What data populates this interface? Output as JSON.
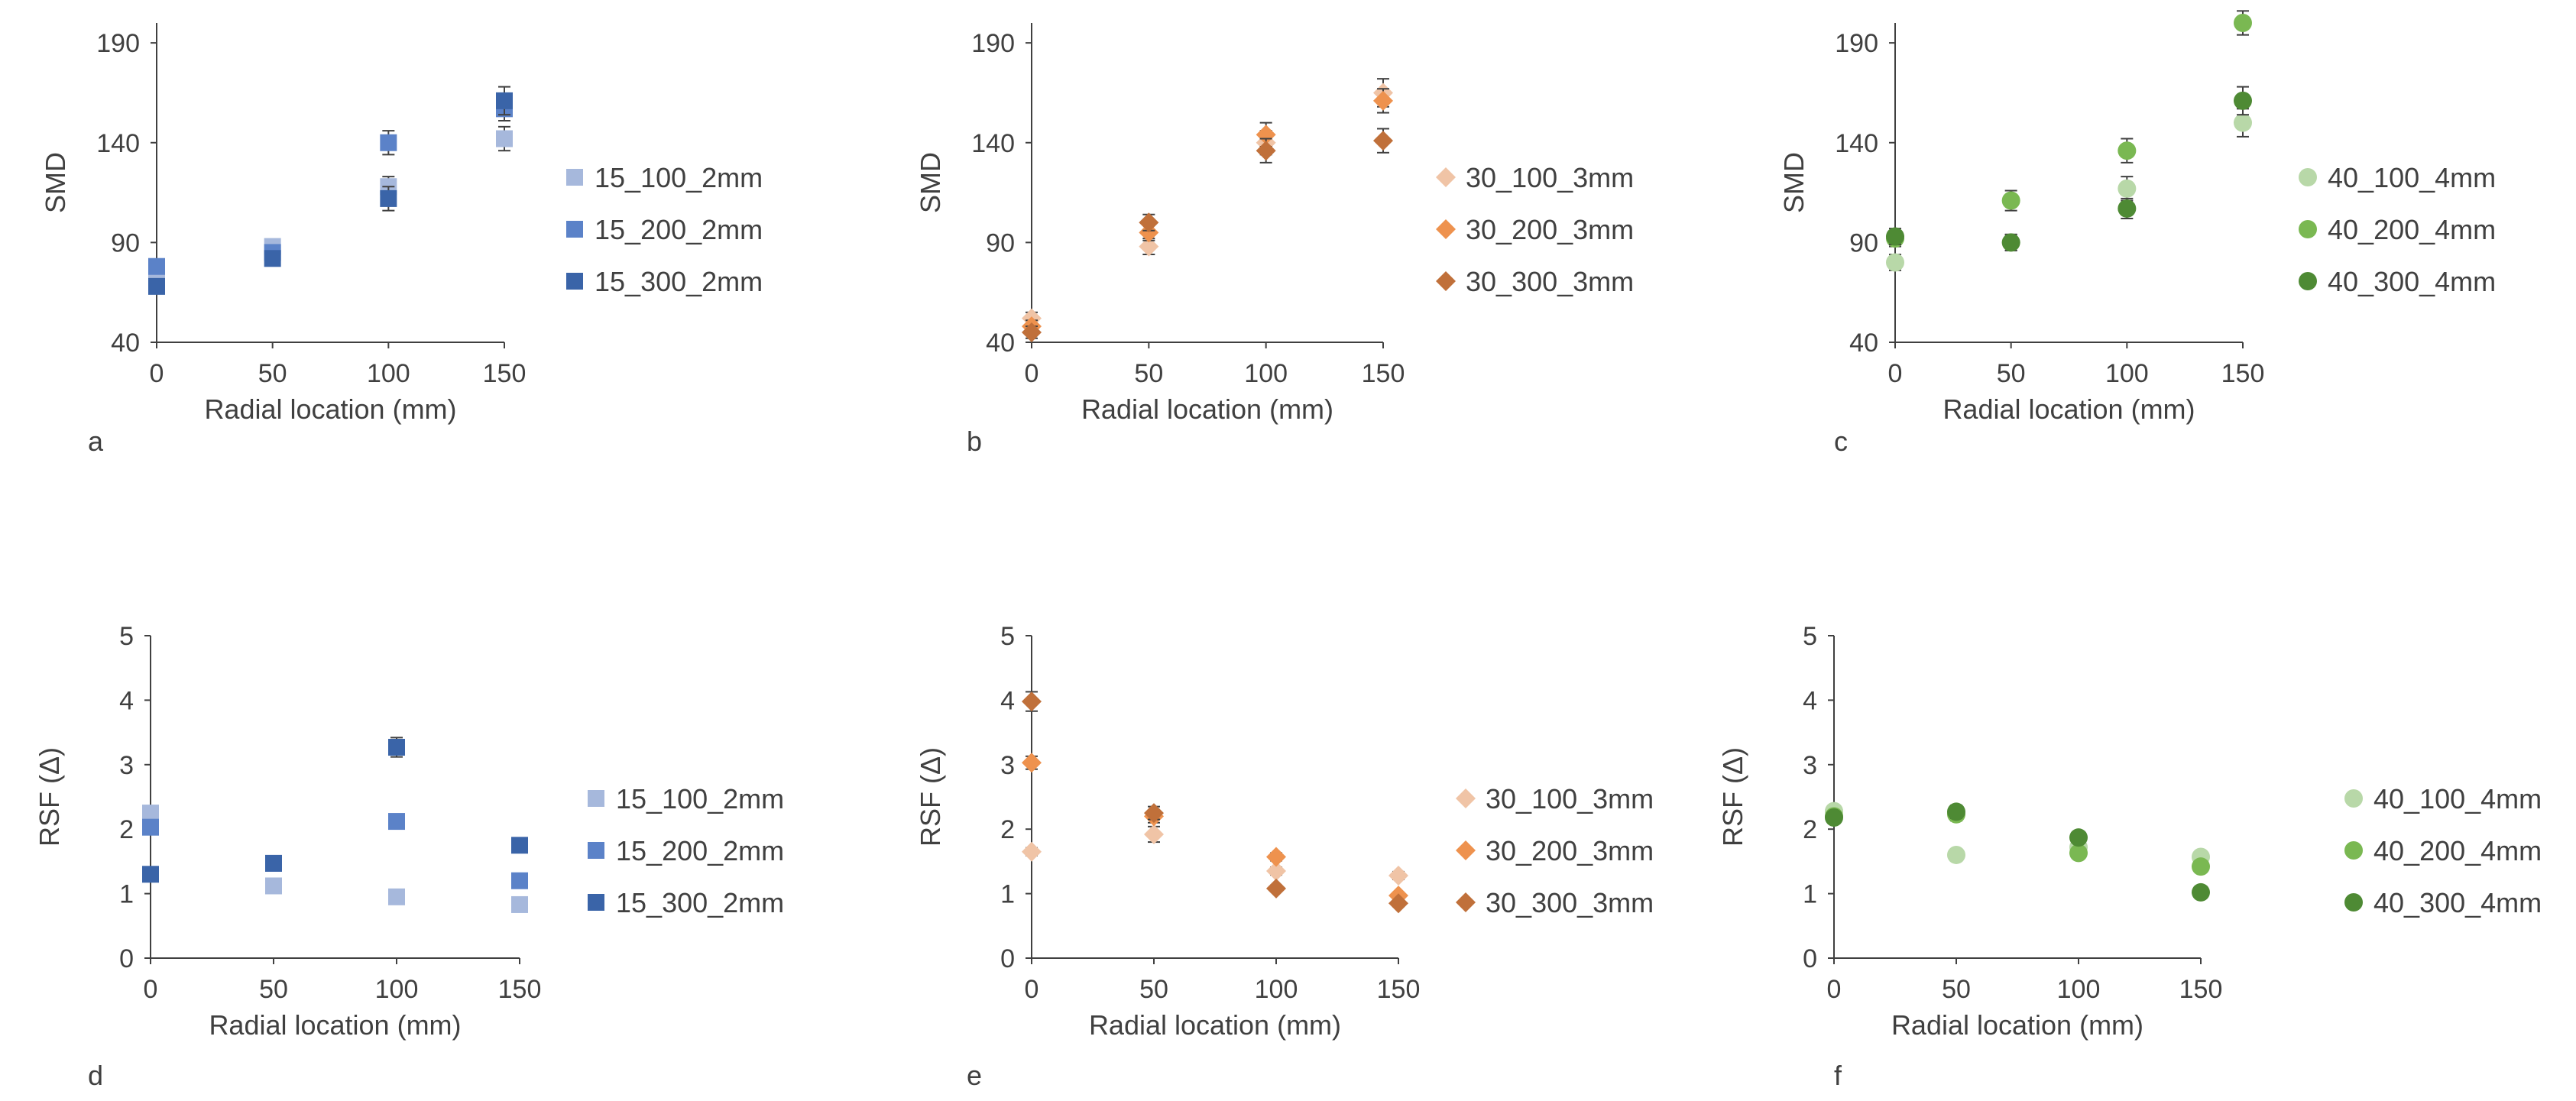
{
  "chart_data": [
    {
      "id": "a",
      "type": "scatter",
      "xlabel": "Radial location (mm)",
      "ylabel": "SMD",
      "xlim": [
        0,
        150
      ],
      "ylim": [
        40,
        200
      ],
      "yticks": [
        40,
        90,
        140,
        190
      ],
      "xticks": [
        0,
        50,
        100,
        150
      ],
      "marker": "square",
      "series": [
        {
          "name": "15_100_2mm",
          "color": "#a6b8dc",
          "points": [
            [
              0,
              73,
              3
            ],
            [
              50,
              88,
              3
            ],
            [
              100,
              118,
              5
            ],
            [
              150,
              142,
              6
            ]
          ]
        },
        {
          "name": "15_200_2mm",
          "color": "#5b82c8",
          "points": [
            [
              0,
              78,
              3
            ],
            [
              50,
              85,
              3
            ],
            [
              100,
              140,
              6
            ],
            [
              150,
              157,
              6
            ]
          ]
        },
        {
          "name": "15_300_2mm",
          "color": "#3a64a8",
          "points": [
            [
              0,
              68,
              3
            ],
            [
              50,
              82,
              3
            ],
            [
              100,
              112,
              6
            ],
            [
              150,
              161,
              7
            ]
          ]
        }
      ]
    },
    {
      "id": "b",
      "type": "scatter",
      "xlabel": "Radial location (mm)",
      "ylabel": "SMD",
      "xlim": [
        0,
        150
      ],
      "ylim": [
        40,
        200
      ],
      "yticks": [
        40,
        90,
        140,
        190
      ],
      "xticks": [
        0,
        50,
        100,
        150
      ],
      "marker": "diamond",
      "series": [
        {
          "name": "30_100_3mm",
          "color": "#f0c4a6",
          "points": [
            [
              0,
              52,
              3
            ],
            [
              50,
              88,
              4
            ],
            [
              100,
              140,
              6
            ],
            [
              150,
              165,
              7
            ]
          ]
        },
        {
          "name": "30_200_3mm",
          "color": "#ee924e",
          "points": [
            [
              0,
              48,
              3
            ],
            [
              50,
              95,
              4
            ],
            [
              100,
              144,
              6
            ],
            [
              150,
              161,
              6
            ]
          ]
        },
        {
          "name": "30_300_3mm",
          "color": "#c0703a",
          "points": [
            [
              0,
              45,
              3
            ],
            [
              50,
              100,
              4
            ],
            [
              100,
              136,
              6
            ],
            [
              150,
              141,
              6
            ]
          ]
        }
      ]
    },
    {
      "id": "c",
      "type": "scatter",
      "xlabel": "Radial location (mm)",
      "ylabel": "SMD",
      "xlim": [
        0,
        150
      ],
      "ylim": [
        40,
        200
      ],
      "yticks": [
        40,
        90,
        140,
        190
      ],
      "xticks": [
        0,
        50,
        100,
        150
      ],
      "marker": "circle",
      "series": [
        {
          "name": "40_100_4mm",
          "color": "#b8d8a8",
          "points": [
            [
              0,
              80,
              4
            ],
            [
              50,
              90,
              4
            ],
            [
              100,
              117,
              6
            ],
            [
              150,
              150,
              7
            ]
          ]
        },
        {
          "name": "40_200_4mm",
          "color": "#7ab852",
          "points": [
            [
              0,
              92,
              4
            ],
            [
              50,
              111,
              5
            ],
            [
              100,
              136,
              6
            ],
            [
              150,
              200,
              6
            ]
          ]
        },
        {
          "name": "40_300_4mm",
          "color": "#4e8a34",
          "points": [
            [
              0,
              93,
              4
            ],
            [
              50,
              90,
              4
            ],
            [
              100,
              107,
              5
            ],
            [
              150,
              161,
              7
            ]
          ]
        }
      ]
    },
    {
      "id": "d",
      "type": "scatter",
      "xlabel": "Radial location (mm)",
      "ylabel": "RSF (Δ)",
      "xlim": [
        0,
        150
      ],
      "ylim": [
        0,
        5
      ],
      "yticks": [
        0,
        1,
        2,
        3,
        4,
        5
      ],
      "xticks": [
        0,
        50,
        100,
        150
      ],
      "marker": "square",
      "series": [
        {
          "name": "15_100_2mm",
          "color": "#a6b8dc",
          "points": [
            [
              0,
              2.25,
              0.06
            ],
            [
              50,
              1.12,
              0.04
            ],
            [
              100,
              0.95,
              0.04
            ],
            [
              150,
              0.83,
              0.04
            ]
          ]
        },
        {
          "name": "15_200_2mm",
          "color": "#5b82c8",
          "points": [
            [
              0,
              2.03,
              0.06
            ],
            [
              50,
              1.47,
              0.05
            ],
            [
              100,
              2.12,
              0.06
            ],
            [
              150,
              1.2,
              0.05
            ]
          ]
        },
        {
          "name": "15_300_2mm",
          "color": "#3a64a8",
          "points": [
            [
              0,
              1.3,
              0.05
            ],
            [
              50,
              1.47,
              0.05
            ],
            [
              100,
              3.27,
              0.15
            ],
            [
              150,
              1.75,
              0.05
            ]
          ]
        }
      ]
    },
    {
      "id": "e",
      "type": "scatter",
      "xlabel": "Radial location (mm)",
      "ylabel": "RSF (Δ)",
      "xlim": [
        0,
        150
      ],
      "ylim": [
        0,
        5
      ],
      "yticks": [
        0,
        1,
        2,
        3,
        4,
        5
      ],
      "xticks": [
        0,
        50,
        100,
        150
      ],
      "marker": "diamond",
      "series": [
        {
          "name": "30_100_3mm",
          "color": "#f0c4a6",
          "points": [
            [
              0,
              1.65,
              0.06
            ],
            [
              50,
              1.92,
              0.12
            ],
            [
              100,
              1.35,
              0.06
            ],
            [
              150,
              1.28,
              0.06
            ]
          ]
        },
        {
          "name": "30_200_3mm",
          "color": "#ee924e",
          "points": [
            [
              0,
              3.03,
              0.1
            ],
            [
              50,
              2.2,
              0.1
            ],
            [
              100,
              1.57,
              0.06
            ],
            [
              150,
              0.97,
              0.05
            ]
          ]
        },
        {
          "name": "30_300_3mm",
          "color": "#c0703a",
          "points": [
            [
              0,
              3.98,
              0.15
            ],
            [
              50,
              2.25,
              0.1
            ],
            [
              100,
              1.08,
              0.05
            ],
            [
              150,
              0.85,
              0.05
            ]
          ]
        }
      ]
    },
    {
      "id": "f",
      "type": "scatter",
      "xlabel": "Radial location (mm)",
      "ylabel": "RSF (Δ)",
      "xlim": [
        0,
        150
      ],
      "ylim": [
        0,
        5
      ],
      "yticks": [
        0,
        1,
        2,
        3,
        4,
        5
      ],
      "xticks": [
        0,
        50,
        100,
        150
      ],
      "marker": "circle",
      "series": [
        {
          "name": "40_100_4mm",
          "color": "#b8d8a8",
          "points": [
            [
              0,
              2.28,
              0.06
            ],
            [
              50,
              1.6,
              0.05
            ],
            [
              100,
              1.72,
              0.05
            ],
            [
              150,
              1.57,
              0.05
            ]
          ]
        },
        {
          "name": "40_200_4mm",
          "color": "#7ab852",
          "points": [
            [
              0,
              2.2,
              0.06
            ],
            [
              50,
              2.23,
              0.1
            ],
            [
              100,
              1.63,
              0.05
            ],
            [
              150,
              1.42,
              0.05
            ]
          ]
        },
        {
          "name": "40_300_4mm",
          "color": "#4e8a34",
          "points": [
            [
              0,
              2.18,
              0.06
            ],
            [
              50,
              2.27,
              0.1
            ],
            [
              100,
              1.87,
              0.05
            ],
            [
              150,
              1.02,
              0.04
            ]
          ]
        }
      ]
    }
  ]
}
